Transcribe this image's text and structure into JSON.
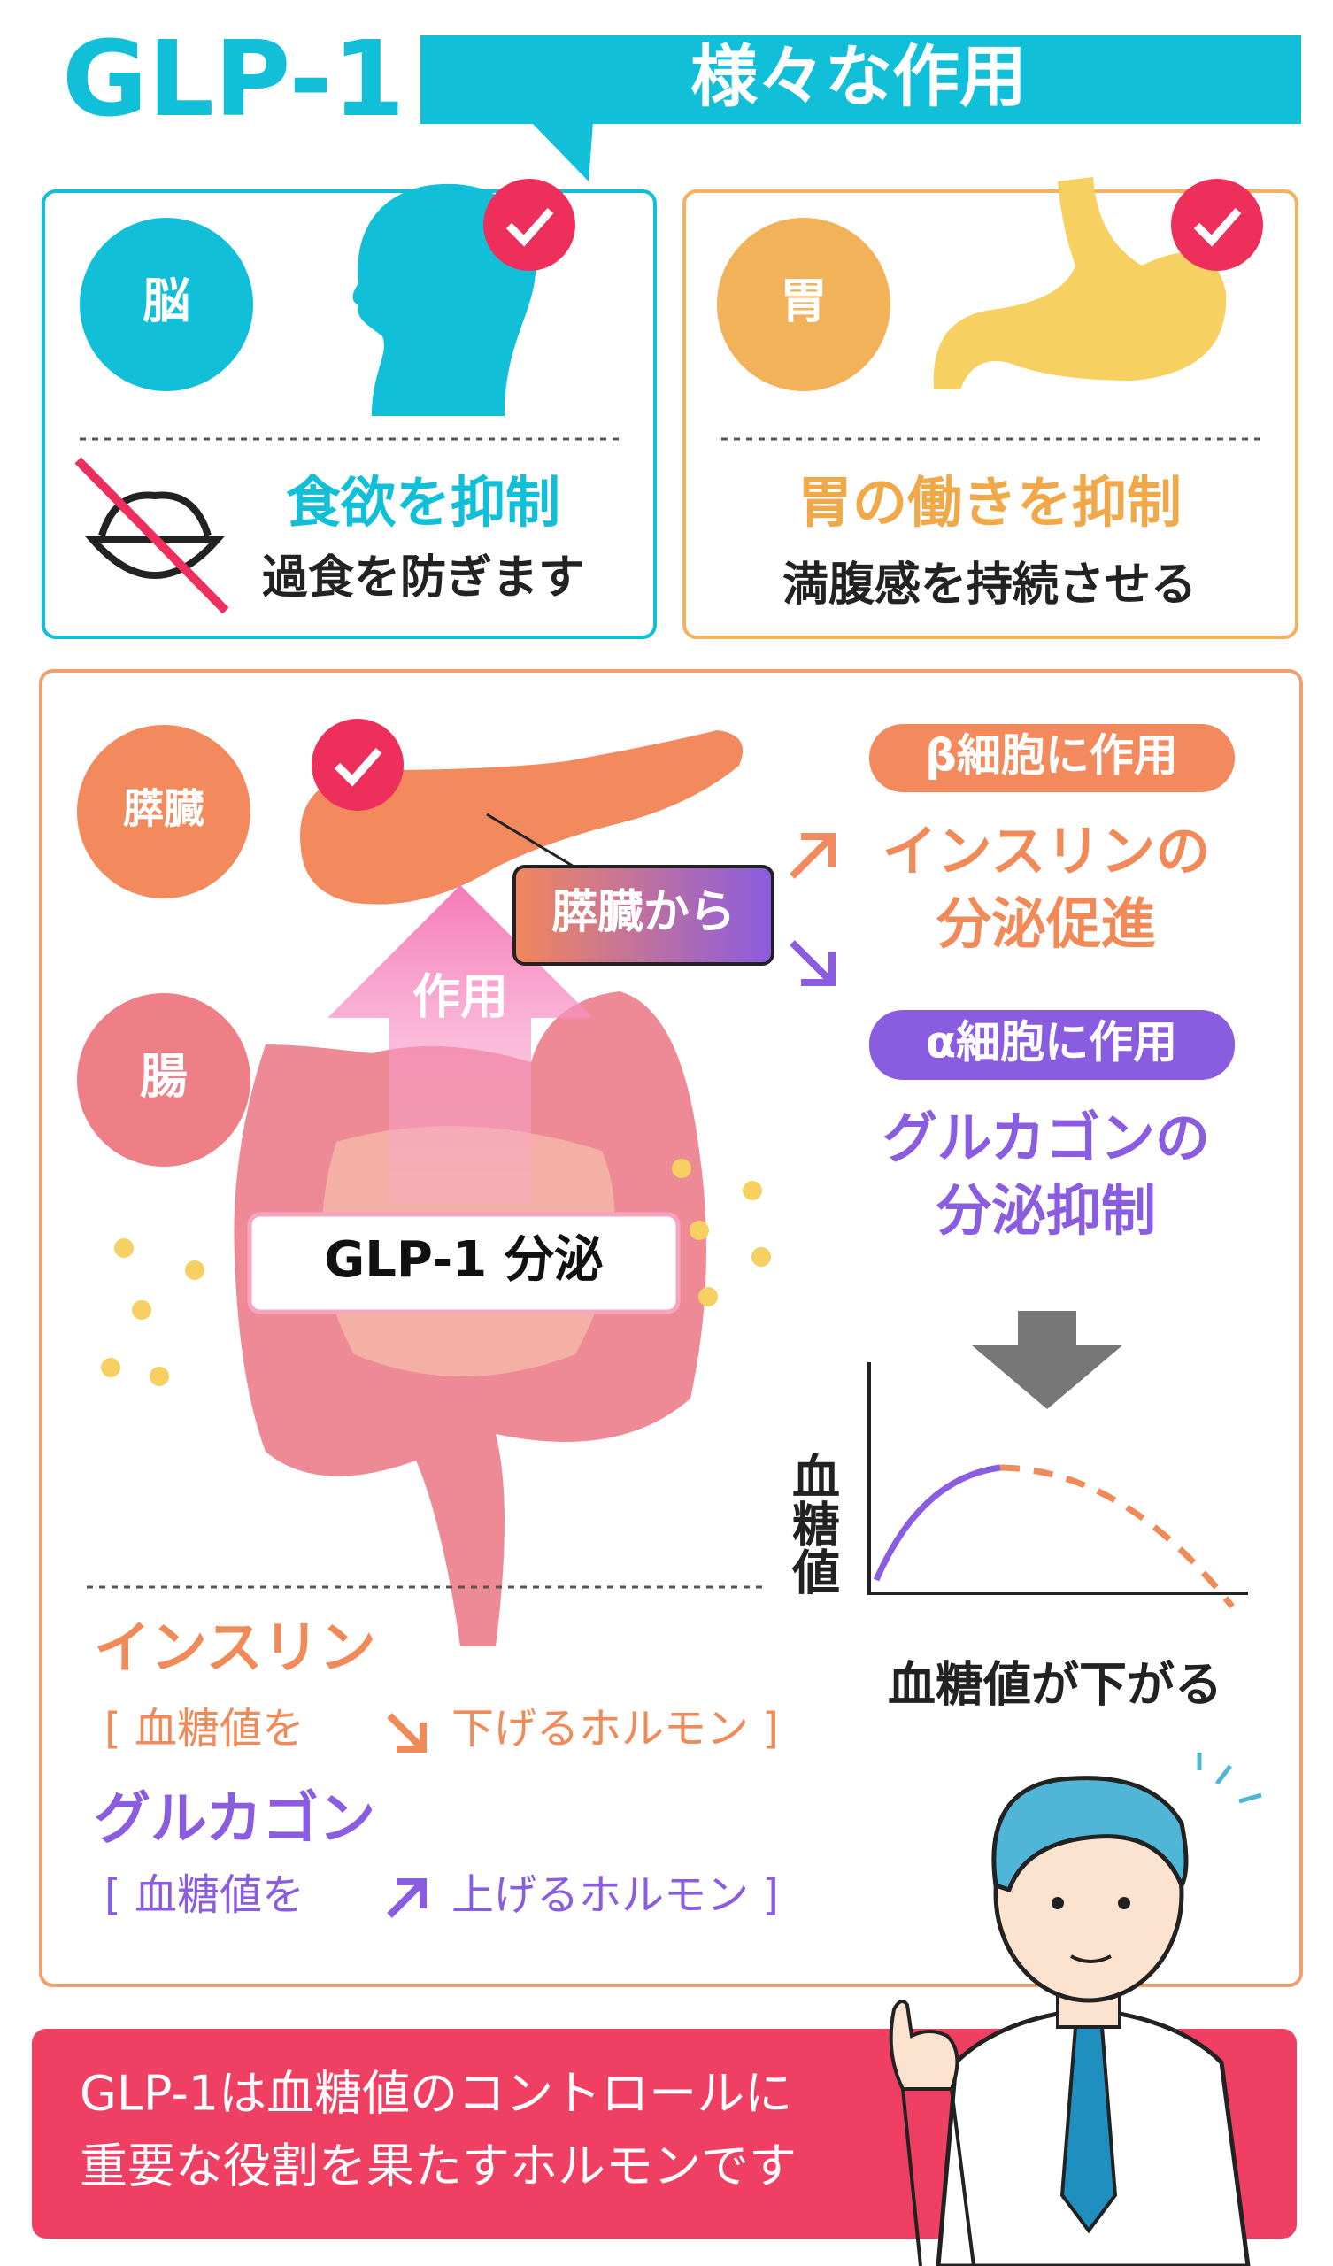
{
  "header": {
    "title": "GLP-1",
    "subtitle": "様々な作用"
  },
  "brain": {
    "badge": "脳",
    "heading": "食欲を抑制",
    "text": "過食を防ぎます"
  },
  "stomach": {
    "badge": "胃",
    "heading": "胃の働きを抑制",
    "text": "満腹感を持続させる"
  },
  "pancreas": {
    "pancreas_badge": "膵臓",
    "intestine_badge": "腸",
    "arrow_label": "作用",
    "from_label": "膵臓から",
    "secretion_label": "GLP-1 分泌",
    "beta": {
      "tag": "β細胞に作用",
      "effect": [
        "インスリンの",
        "分泌促進"
      ]
    },
    "alpha": {
      "tag": "α細胞に作用",
      "effect": [
        "グルカゴンの",
        "分泌抑制"
      ]
    },
    "graph": {
      "y_label": "血糖値",
      "caption": "血糖値が下がる"
    }
  },
  "hormones": [
    {
      "name": "インスリン",
      "before": "[ 血糖値を",
      "after": "下げるホルモン ]"
    },
    {
      "name": "グルカゴン",
      "before": "[ 血糖値を",
      "after": "上げるホルモン ]"
    }
  ],
  "footer": {
    "lines": [
      "GLP-1は血糖値のコントロールに",
      "重要な役割を果たすホルモンです"
    ]
  }
}
